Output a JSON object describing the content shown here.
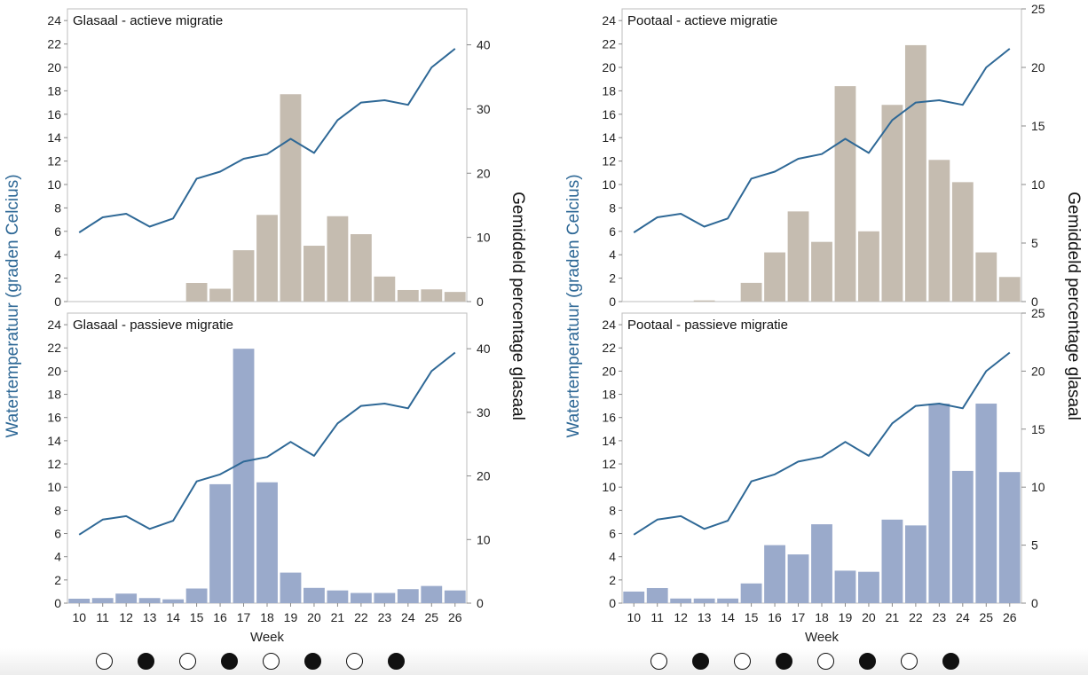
{
  "charts": [
    {
      "left_axis_label": "Watertemperatuur (graden Celcius)",
      "right_axis_label": "Gemiddeld percentage glasaal",
      "x_axis_label": "Week",
      "panels": [
        {
          "title": "Glasaal - actieve migratie",
          "right_ticks": [
            0,
            10,
            20,
            30,
            40
          ]
        },
        {
          "title": "Glasaal - passieve migratie",
          "right_ticks": [
            0,
            10,
            20,
            30,
            40
          ]
        }
      ]
    },
    {
      "left_axis_label": "Watertemperatuur (graden Celcius)",
      "right_axis_label": "Gemiddeld percentage glasaal",
      "x_axis_label": "Week",
      "panels": [
        {
          "title": "Pootaal - actieve migratie",
          "right_ticks": [
            0,
            5,
            10,
            15,
            20,
            25
          ]
        },
        {
          "title": "Pootaal - passieve migratie",
          "right_ticks": [
            0,
            5,
            10,
            15,
            20,
            25
          ]
        }
      ]
    }
  ],
  "carousel": {
    "left": [
      "empty",
      "filled",
      "empty",
      "filled",
      "empty",
      "filled",
      "empty",
      "filled"
    ],
    "right": [
      "empty",
      "filled",
      "empty",
      "filled",
      "empty",
      "filled",
      "empty",
      "filled"
    ]
  },
  "chart_data": [
    {
      "type": "bar",
      "title": "Glasaal - actieve migratie",
      "categories": [
        10,
        11,
        12,
        13,
        14,
        15,
        16,
        17,
        18,
        19,
        20,
        21,
        22,
        23,
        24,
        25,
        26
      ],
      "xlabel": "Week",
      "ylabel": "Watertemperatuur (graden Celcius)",
      "y2label": "Gemiddeld percentage glasaal",
      "ylim": [
        0,
        25
      ],
      "y2lim": [
        0,
        45.6
      ],
      "bar_color": "#c5bcb0",
      "line_color": "#2e6896",
      "series": [
        {
          "name": "Gemiddeld percentage glasaal",
          "axis": "right",
          "type": "bar",
          "values": [
            0,
            0,
            0,
            0,
            0,
            2.9,
            2.0,
            8.0,
            13.5,
            32.3,
            8.7,
            13.3,
            10.5,
            3.9,
            1.8,
            1.9,
            1.5
          ]
        },
        {
          "name": "Watertemperatuur",
          "axis": "left",
          "type": "line",
          "values": [
            5.9,
            7.2,
            7.5,
            6.4,
            7.1,
            10.5,
            11.1,
            12.2,
            12.6,
            13.9,
            12.7,
            15.5,
            17.0,
            17.2,
            16.8,
            20.0,
            21.6
          ]
        }
      ]
    },
    {
      "type": "bar",
      "title": "Glasaal - passieve migratie",
      "categories": [
        10,
        11,
        12,
        13,
        14,
        15,
        16,
        17,
        18,
        19,
        20,
        21,
        22,
        23,
        24,
        25,
        26
      ],
      "xlabel": "Week",
      "ylabel": "Watertemperatuur (graden Celcius)",
      "y2label": "Gemiddeld percentage glasaal",
      "ylim": [
        0,
        25
      ],
      "y2lim": [
        0,
        45.6
      ],
      "bar_color": "#9aaacb",
      "line_color": "#2e6896",
      "series": [
        {
          "name": "Gemiddeld percentage glasaal",
          "axis": "right",
          "type": "bar",
          "values": [
            0.7,
            0.8,
            1.5,
            0.8,
            0.6,
            2.3,
            18.7,
            40.0,
            19.0,
            4.8,
            2.4,
            2.0,
            1.6,
            1.6,
            2.2,
            2.7,
            2.0
          ]
        },
        {
          "name": "Watertemperatuur",
          "axis": "left",
          "type": "line",
          "values": [
            5.9,
            7.2,
            7.5,
            6.4,
            7.1,
            10.5,
            11.1,
            12.2,
            12.6,
            13.9,
            12.7,
            15.5,
            17.0,
            17.2,
            16.8,
            20.0,
            21.6
          ]
        }
      ]
    },
    {
      "type": "bar",
      "title": "Pootaal - actieve migratie",
      "categories": [
        10,
        11,
        12,
        13,
        14,
        15,
        16,
        17,
        18,
        19,
        20,
        21,
        22,
        23,
        24,
        25,
        26
      ],
      "xlabel": "Week",
      "ylabel": "Watertemperatuur (graden Celcius)",
      "y2label": "Gemiddeld percentage glasaal",
      "ylim": [
        0,
        25
      ],
      "y2lim": [
        0,
        25
      ],
      "bar_color": "#c5bcb0",
      "line_color": "#2e6896",
      "series": [
        {
          "name": "Gemiddeld percentage glasaal",
          "axis": "right",
          "type": "bar",
          "values": [
            0,
            0,
            0,
            0.1,
            0,
            1.6,
            4.2,
            7.7,
            5.1,
            18.4,
            6.0,
            16.8,
            21.9,
            12.1,
            10.2,
            4.2,
            2.1
          ]
        },
        {
          "name": "Watertemperatuur",
          "axis": "left",
          "type": "line",
          "values": [
            5.9,
            7.2,
            7.5,
            6.4,
            7.1,
            10.5,
            11.1,
            12.2,
            12.6,
            13.9,
            12.7,
            15.5,
            17.0,
            17.2,
            16.8,
            20.0,
            21.6
          ]
        }
      ]
    },
    {
      "type": "bar",
      "title": "Pootaal - passieve migratie",
      "categories": [
        10,
        11,
        12,
        13,
        14,
        15,
        16,
        17,
        18,
        19,
        20,
        21,
        22,
        23,
        24,
        25,
        26
      ],
      "xlabel": "Week",
      "ylabel": "Watertemperatuur (graden Celcius)",
      "y2label": "Gemiddeld percentage glasaal",
      "ylim": [
        0,
        25
      ],
      "y2lim": [
        0,
        25
      ],
      "bar_color": "#9aaacb",
      "line_color": "#2e6896",
      "series": [
        {
          "name": "Gemiddeld percentage glasaal",
          "axis": "right",
          "type": "bar",
          "values": [
            1.0,
            1.3,
            0.4,
            0.4,
            0.4,
            1.7,
            5.0,
            4.2,
            6.8,
            2.8,
            2.7,
            7.2,
            6.7,
            17.2,
            11.4,
            17.2,
            11.3
          ]
        },
        {
          "name": "Watertemperatuur",
          "axis": "left",
          "type": "line",
          "values": [
            5.9,
            7.2,
            7.5,
            6.4,
            7.1,
            10.5,
            11.1,
            12.2,
            12.6,
            13.9,
            12.7,
            15.5,
            17.0,
            17.2,
            16.8,
            20.0,
            21.6
          ]
        }
      ]
    }
  ]
}
